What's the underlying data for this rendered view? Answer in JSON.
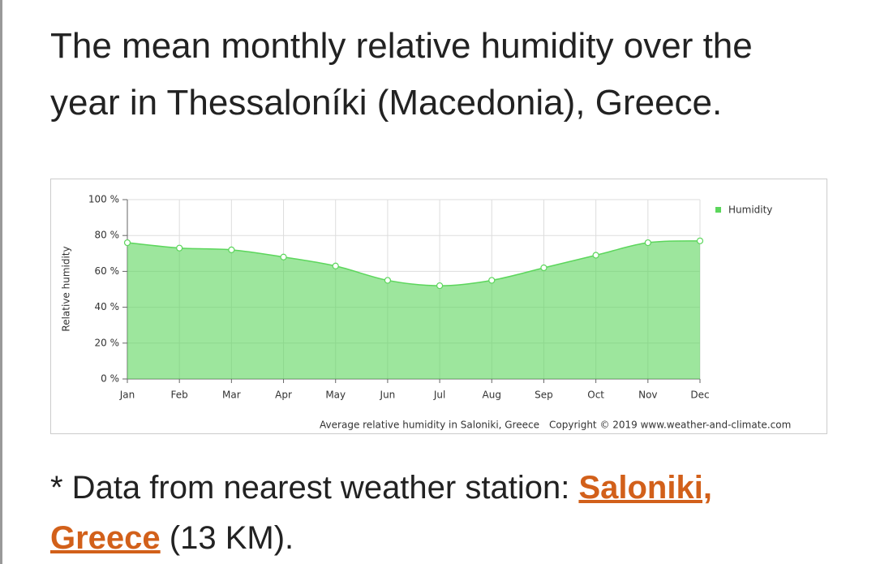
{
  "heading": "The mean monthly relative humidity over the year in Thessaloníki (Macedonia), Greece.",
  "chart_data": {
    "type": "area",
    "y_label": "Relative humidity",
    "categories": [
      "Jan",
      "Feb",
      "Mar",
      "Apr",
      "May",
      "Jun",
      "Jul",
      "Aug",
      "Sep",
      "Oct",
      "Nov",
      "Dec"
    ],
    "series": [
      {
        "name": "Humidity",
        "color": "#5cd65c",
        "values": [
          76,
          73,
          72,
          68,
          63,
          55,
          52,
          55,
          62,
          69,
          76,
          77
        ]
      }
    ],
    "ylim": [
      0,
      100
    ],
    "yticks": [
      {
        "value": 0,
        "label": "0 %"
      },
      {
        "value": 20,
        "label": "20 %"
      },
      {
        "value": 40,
        "label": "40 %"
      },
      {
        "value": 60,
        "label": "60 %"
      },
      {
        "value": 80,
        "label": "80 %"
      },
      {
        "value": 100,
        "label": "100 %"
      }
    ],
    "grid": true,
    "legend": "top-right",
    "caption": "Average relative humidity in Saloniki, Greece",
    "copyright": "Copyright © 2019 www.weather-and-climate.com"
  },
  "footnote": {
    "prefix": "* Data from nearest weather station: ",
    "link": "Saloniki, Greece",
    "suffix": " (13 KM)."
  }
}
